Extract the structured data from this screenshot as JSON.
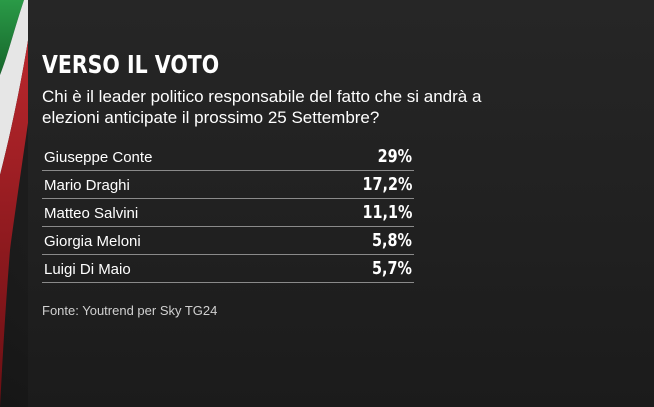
{
  "header": {
    "title": "VERSO IL VOTO",
    "subtitle": "Chi è il leader politico responsabile del fatto che si andrà a elezioni anticipate il prossimo 25 Settembre?"
  },
  "footer": {
    "source": "Fonte: Youtrend per Sky TG24"
  },
  "colors": {
    "flag_green": "#1f8a3c",
    "flag_white": "#e8e8e8",
    "flag_red": "#b01c24",
    "text": "#ffffff",
    "divider": "#8a8a8a"
  },
  "chart_data": {
    "type": "table",
    "title": "VERSO IL VOTO",
    "rows": [
      {
        "name": "Giuseppe Conte",
        "value": 29,
        "label": "29%"
      },
      {
        "name": "Mario Draghi",
        "value": 17.2,
        "label": "17,2%"
      },
      {
        "name": "Matteo Salvini",
        "value": 11.1,
        "label": "11,1%"
      },
      {
        "name": "Giorgia Meloni",
        "value": 5.8,
        "label": "5,8%"
      },
      {
        "name": "Luigi Di Maio",
        "value": 5.7,
        "label": "5,7%"
      }
    ]
  }
}
